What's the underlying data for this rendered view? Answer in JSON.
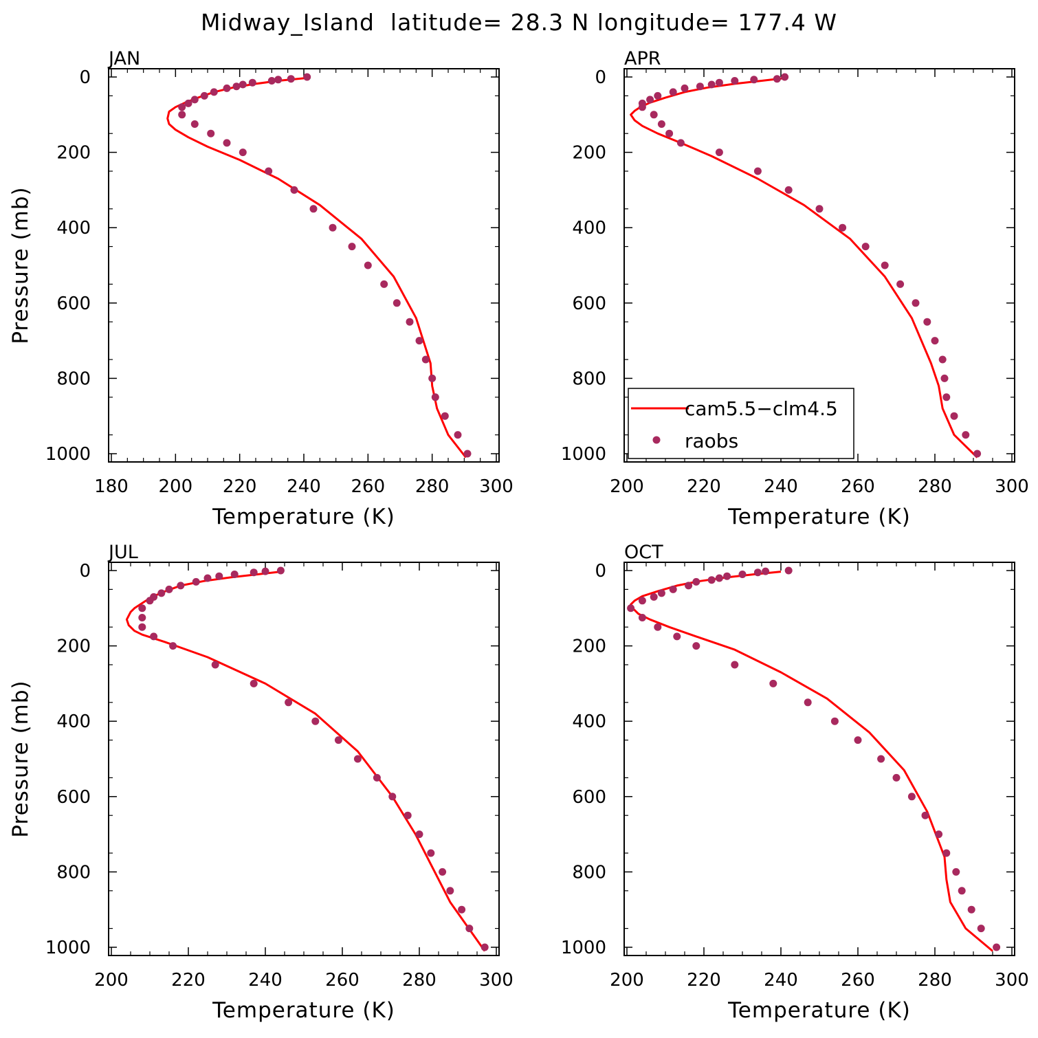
{
  "title": "Midway_Island  latitude= 28.3 N longitude= 177.4 W",
  "colors": {
    "model": "#ff0000",
    "obs": "#a8295e"
  },
  "legend": {
    "model_label": "cam5.5−clm4.5",
    "obs_label": "raobs"
  },
  "chart_data": [
    {
      "type": "line",
      "panel": "JAN",
      "xlabel": "Temperature (K)",
      "ylabel": "Pressure (mb)",
      "xlim": [
        180,
        300
      ],
      "ylim": [
        1000,
        0
      ],
      "xticks": [
        180,
        200,
        220,
        240,
        260,
        280,
        300
      ],
      "yticks": [
        0,
        200,
        400,
        600,
        800,
        1000
      ],
      "series": [
        {
          "name": "cam5.5−clm4.5",
          "kind": "line",
          "x": [
            240.5,
            232,
            225,
            218,
            212,
            207,
            203,
            200,
            198,
            197.5,
            198,
            200,
            204,
            210,
            220,
            232,
            245,
            258,
            268,
            275,
            279.5,
            280,
            281.5,
            285,
            290.5
          ],
          "y": [
            3,
            10,
            18,
            28,
            40,
            55,
            68,
            80,
            92,
            110,
            125,
            140,
            160,
            185,
            220,
            270,
            340,
            430,
            530,
            640,
            760,
            820,
            880,
            950,
            1010
          ]
        },
        {
          "name": "raobs",
          "kind": "scatter",
          "x": [
            241,
            236,
            232,
            230,
            224,
            221,
            219,
            216,
            212,
            209,
            206,
            204,
            202,
            202,
            206,
            211,
            216,
            221,
            229,
            237,
            243,
            249,
            255,
            260,
            265,
            269,
            273,
            276,
            278,
            280,
            281,
            284,
            288,
            291
          ],
          "y": [
            0,
            5,
            7,
            10,
            15,
            20,
            25,
            30,
            40,
            50,
            60,
            70,
            80,
            100,
            125,
            150,
            175,
            200,
            250,
            300,
            350,
            400,
            450,
            500,
            550,
            600,
            650,
            700,
            750,
            800,
            850,
            900,
            950,
            1000
          ]
        }
      ]
    },
    {
      "type": "line",
      "panel": "APR",
      "xlabel": "Temperature (K)",
      "ylabel": "",
      "xlim": [
        200,
        300
      ],
      "ylim": [
        1000,
        0
      ],
      "xticks": [
        200,
        220,
        240,
        260,
        280,
        300
      ],
      "yticks": [
        0,
        200,
        400,
        600,
        800,
        1000
      ],
      "series": [
        {
          "name": "cam5.5−clm4.5",
          "kind": "line",
          "x": [
            241,
            235,
            228,
            221,
            215,
            210,
            206,
            203.5,
            202,
            201,
            202,
            204,
            208,
            214,
            222,
            234,
            246,
            258,
            267,
            274,
            279,
            281,
            282,
            285,
            291
          ],
          "y": [
            3,
            10,
            18,
            28,
            40,
            55,
            68,
            80,
            90,
            100,
            115,
            130,
            150,
            175,
            210,
            270,
            340,
            430,
            530,
            640,
            760,
            820,
            880,
            950,
            1010
          ]
        },
        {
          "name": "raobs",
          "kind": "scatter",
          "x": [
            241,
            239,
            233,
            228,
            224,
            222,
            219,
            215,
            212,
            208,
            206,
            204,
            204,
            207,
            209,
            211,
            214,
            224,
            234,
            242,
            250,
            256,
            262,
            267,
            271,
            275,
            278,
            280,
            282,
            282.5,
            283,
            285,
            288,
            291
          ],
          "y": [
            0,
            5,
            7,
            10,
            15,
            20,
            25,
            30,
            40,
            50,
            60,
            70,
            80,
            100,
            125,
            150,
            175,
            200,
            250,
            300,
            350,
            400,
            450,
            500,
            550,
            600,
            650,
            700,
            750,
            800,
            850,
            900,
            950,
            1000
          ]
        }
      ]
    },
    {
      "type": "line",
      "panel": "JUL",
      "xlabel": "Temperature (K)",
      "ylabel": "Pressure (mb)",
      "xlim": [
        200,
        300
      ],
      "ylim": [
        1000,
        0
      ],
      "xticks": [
        200,
        220,
        240,
        260,
        280,
        300
      ],
      "yticks": [
        0,
        200,
        400,
        600,
        800,
        1000
      ],
      "series": [
        {
          "name": "cam5.5−clm4.5",
          "kind": "line",
          "x": [
            244,
            238,
            231,
            224,
            218,
            214,
            211,
            209,
            207.5,
            206,
            205,
            204,
            204.5,
            206,
            208,
            214,
            225,
            240,
            253,
            264,
            273,
            279,
            283,
            288,
            297
          ],
          "y": [
            3,
            10,
            18,
            28,
            40,
            55,
            68,
            80,
            90,
            100,
            110,
            130,
            145,
            160,
            170,
            190,
            230,
            300,
            380,
            480,
            600,
            700,
            780,
            880,
            1010
          ]
        },
        {
          "name": "raobs",
          "kind": "scatter",
          "x": [
            244,
            240,
            237,
            232,
            228,
            225,
            222,
            218,
            215,
            213,
            211,
            210,
            208,
            208,
            208,
            211,
            216,
            227,
            237,
            246,
            253,
            259,
            264,
            269,
            273,
            277,
            280,
            283,
            286,
            288,
            291,
            293,
            297
          ],
          "y": [
            0,
            2,
            5,
            10,
            15,
            20,
            30,
            40,
            50,
            60,
            70,
            80,
            100,
            125,
            150,
            175,
            200,
            250,
            300,
            350,
            400,
            450,
            500,
            550,
            600,
            650,
            700,
            750,
            800,
            850,
            900,
            950,
            1000
          ]
        }
      ]
    },
    {
      "type": "line",
      "panel": "OCT",
      "xlabel": "Temperature (K)",
      "ylabel": "",
      "xlim": [
        200,
        300
      ],
      "ylim": [
        1000,
        0
      ],
      "xticks": [
        200,
        220,
        240,
        260,
        280,
        300
      ],
      "yticks": [
        0,
        200,
        400,
        600,
        800,
        1000
      ],
      "series": [
        {
          "name": "cam5.5−clm4.5",
          "kind": "line",
          "x": [
            240,
            233,
            226,
            219,
            213,
            208,
            204,
            202,
            201,
            201.5,
            203,
            206,
            211,
            218,
            228,
            240,
            252,
            263,
            272,
            278,
            282.5,
            283,
            284,
            288,
            295
          ],
          "y": [
            3,
            10,
            18,
            28,
            40,
            55,
            68,
            80,
            90,
            100,
            115,
            130,
            150,
            175,
            210,
            270,
            340,
            430,
            530,
            640,
            760,
            820,
            880,
            950,
            1010
          ]
        },
        {
          "name": "raobs",
          "kind": "scatter",
          "x": [
            242,
            236,
            234,
            230,
            226,
            224,
            222,
            218,
            216,
            212,
            209,
            207,
            204,
            201,
            204,
            208,
            213,
            218,
            228,
            238,
            247,
            254,
            260,
            266,
            270,
            274,
            277.5,
            281,
            283,
            285.5,
            287,
            289.5,
            292,
            296
          ],
          "y": [
            0,
            2,
            5,
            10,
            15,
            20,
            25,
            30,
            40,
            50,
            60,
            70,
            80,
            100,
            125,
            150,
            175,
            200,
            250,
            300,
            350,
            400,
            450,
            500,
            550,
            600,
            650,
            700,
            750,
            800,
            850,
            900,
            950,
            1000
          ]
        }
      ]
    }
  ]
}
